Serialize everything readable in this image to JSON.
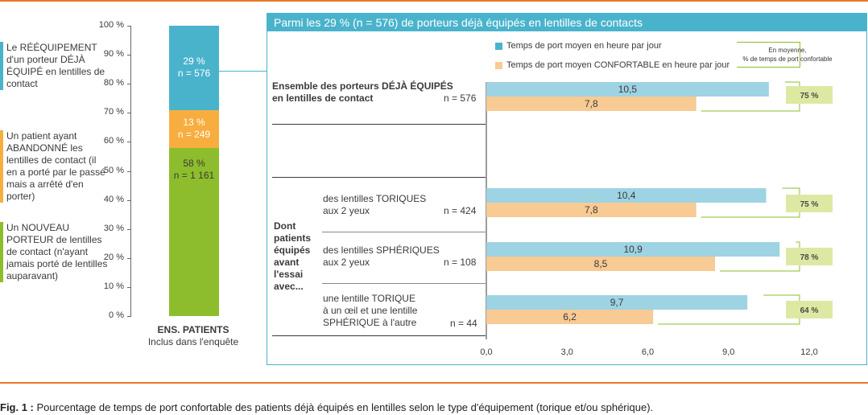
{
  "colors": {
    "orange_rule": "#e8782a",
    "blue": "#4ab3cc",
    "light_blue": "#9dd3e2",
    "light_orange": "#f8ca94",
    "orange": "#f7ae3f",
    "green": "#8dbd2c",
    "pct_box": "#dde9a2"
  },
  "left_legend": [
    {
      "text": "Le RÉÉQUIPEMENT d'un porteur DÉJÀ ÉQUIPÉ en lentilles de contact",
      "color": "#4ab3cc"
    },
    {
      "text": "Un patient ayant ABANDONNÉ les lentilles de contact (il en a porté par le passé mais a arrêté d'en porter)",
      "color": "#f7ae3f"
    },
    {
      "text": "Un NOUVEAU PORTEUR de lentilles de contact (n'ayant jamais porté de lentilles auparavant)",
      "color": "#8dbd2c"
    }
  ],
  "left_labels": {
    "category": "ENS. PATIENTS",
    "subcategory": "Inclus dans l'enquête"
  },
  "panel_title": "Parmi les 29 % (n = 576) de porteurs déjà équipés en lentilles de contacts",
  "bar_legend": {
    "mean": "Temps de port moyen en heure par jour",
    "comfortable": "Temps de port moyen CONFORTABLE en heure par jour",
    "pct_note": [
      "En moyenne,",
      "% de temps de port confortable"
    ]
  },
  "group_label": [
    "Dont",
    "patients",
    "équipés",
    "avant",
    "l'essai",
    "avec..."
  ],
  "row_labels": [
    {
      "lines": [
        "Ensemble des porteurs DÉJÀ ÉQUIPÉS",
        "en lentilles de contact"
      ],
      "n": "n = 576",
      "bold": true
    },
    {
      "lines": [
        "des lentilles TORIQUES",
        "aux 2 yeux"
      ],
      "n": "n = 424",
      "bold": false
    },
    {
      "lines": [
        "des lentilles SPHÉRIQUES",
        "aux 2 yeux"
      ],
      "n": "n = 108",
      "bold": false
    },
    {
      "lines": [
        "une lentille TORIQUE",
        "à un œil et une lentille",
        "SPHÉRIQUE à l'autre"
      ],
      "n": "n = 44",
      "bold": false
    }
  ],
  "caption": {
    "bold": "Fig. 1 :",
    "text": " Pourcentage de temps de port confortable des patients déjà équipés en lentilles selon le type d'équipement (torique et/ou sphérique)."
  },
  "chart_data": [
    {
      "type": "bar",
      "stacked": true,
      "categories": [
        "ENS. PATIENTS"
      ],
      "ylim": [
        0,
        100
      ],
      "yticks": [
        "0 %",
        "10 %",
        "20 %",
        "30 %",
        "40 %",
        "50 %",
        "60 %",
        "70 %",
        "80 %",
        "90 %",
        "100 %"
      ],
      "series": [
        {
          "name": "Un NOUVEAU PORTEUR de lentilles de contact",
          "values": [
            58
          ],
          "label": [
            "58 %",
            "n = 1 161"
          ]
        },
        {
          "name": "Un patient ayant ABANDONNÉ les lentilles de contact",
          "values": [
            13
          ],
          "label": [
            "13 %",
            "n = 249"
          ]
        },
        {
          "name": "Le RÉÉQUIPEMENT d'un porteur DÉJÀ ÉQUIPÉ",
          "values": [
            29
          ],
          "label": [
            "29 %",
            "n = 576"
          ]
        }
      ]
    },
    {
      "type": "bar",
      "orientation": "horizontal",
      "xlim": [
        0,
        12
      ],
      "xticks": [
        "0,0",
        "3,0",
        "6,0",
        "9,0",
        "12,0"
      ],
      "series": [
        {
          "name": "Temps de port moyen en heure par jour",
          "values": [
            10.5,
            10.4,
            10.9,
            9.7
          ],
          "labels": [
            "10,5",
            "10,4",
            "10,9",
            "9,7"
          ]
        },
        {
          "name": "Temps de port moyen CONFORTABLE en heure par jour",
          "values": [
            7.8,
            7.8,
            8.5,
            6.2
          ],
          "labels": [
            "7,8",
            "7,8",
            "8,5",
            "6,2"
          ]
        }
      ],
      "percent_comfortable": [
        "75 %",
        "75 %",
        "78 %",
        "64 %"
      ]
    }
  ]
}
